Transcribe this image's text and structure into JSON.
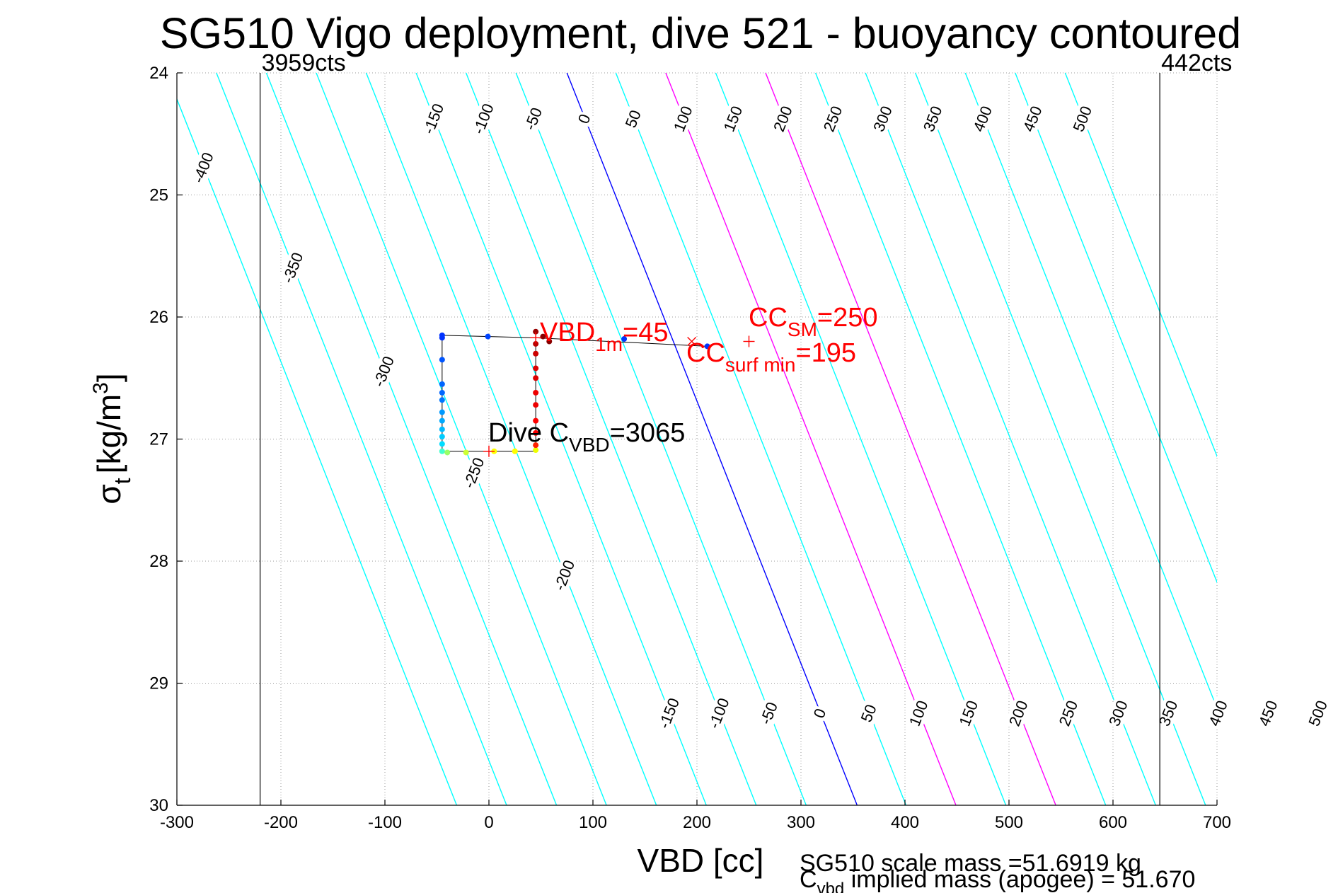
{
  "chart_data": {
    "type": "scatter",
    "title": "SG510 Vigo deployment, dive 521 - buoyancy contoured",
    "xlabel": "VBD [cc]",
    "ylabel_symbol": "σ",
    "ylabel_sub": "t",
    "ylabel_units": "[kg/m",
    "ylabel_units_sup": "3",
    "ylabel_units_close": "]",
    "xlim": [
      -300,
      700
    ],
    "ylim": [
      24,
      30
    ],
    "y_reversed": true,
    "grid": true,
    "x_ticks": [
      -300,
      -200,
      -100,
      0,
      100,
      200,
      300,
      400,
      500,
      600,
      700
    ],
    "x_tick_labels": [
      "-300",
      "-200",
      "-100",
      "0",
      "100",
      "200",
      "300",
      "400",
      "500",
      "600",
      "700"
    ],
    "y_ticks": [
      24,
      25,
      26,
      27,
      28,
      29,
      30
    ],
    "y_tick_labels": [
      "24",
      "25",
      "26",
      "27",
      "28",
      "29",
      "30"
    ],
    "limit_lines": [
      {
        "x": -220,
        "label": "3959cts"
      },
      {
        "x": 645,
        "label": "442cts"
      }
    ],
    "buoyancy_contours": {
      "slope_vbd_per_sigma": 46.5,
      "reference_sigma": 24,
      "levels": [
        -400,
        -350,
        -300,
        -250,
        -200,
        -150,
        -100,
        -50,
        0,
        50,
        100,
        150,
        200,
        250,
        300,
        350,
        400,
        450,
        500
      ],
      "offsets_at_ref": [
        -310,
        -262,
        -214,
        -166,
        -118,
        -70,
        -22,
        26,
        75,
        122,
        170,
        218,
        266,
        314,
        362,
        410,
        458,
        506,
        554
      ],
      "highlight": {
        "0": "#0000ff",
        "100": "#ff00ff",
        "200": "#ff00ff"
      },
      "color": "#00ffff",
      "upper_label_levels": [
        "-150",
        "-100",
        "-50",
        "0",
        "50",
        "100",
        "150",
        "200",
        "250",
        "300",
        "350",
        "400",
        "450",
        "500"
      ],
      "upper_label_sigma": 24.38,
      "lower_label_levels": [
        "-150",
        "-100",
        "-50",
        "0",
        "50",
        "100",
        "150",
        "200",
        "250",
        "300",
        "350",
        "400",
        "450",
        "500"
      ],
      "lower_label_sigma": 29.25,
      "left_labels": [
        {
          "level": "-400",
          "sigma": 24.78
        },
        {
          "level": "-350",
          "sigma": 25.6
        },
        {
          "level": "-300",
          "sigma": 26.45
        },
        {
          "level": "-250",
          "sigma": 27.28
        },
        {
          "level": "-200",
          "sigma": 28.12
        }
      ]
    },
    "trajectory": {
      "path": [
        {
          "x": -45,
          "y": 26.15
        },
        {
          "x": 45,
          "y": 26.17
        },
        {
          "x": 210,
          "y": 26.24
        }
      ],
      "box": [
        {
          "x": -45,
          "y": 26.15
        },
        {
          "x": -45,
          "y": 27.1
        },
        {
          "x": 45,
          "y": 27.1
        },
        {
          "x": 45,
          "y": 26.15
        }
      ],
      "dive_points": [
        {
          "x": -45,
          "y": 26.15,
          "color": "#0033ff"
        },
        {
          "x": -45,
          "y": 26.17,
          "color": "#0033ff"
        },
        {
          "x": -1,
          "y": 26.16,
          "color": "#0044ff"
        },
        {
          "x": 130,
          "y": 26.18,
          "color": "#0033ff"
        },
        {
          "x": 210,
          "y": 26.24,
          "color": "#0033ff"
        },
        {
          "x": -45,
          "y": 26.35,
          "color": "#0055ff"
        },
        {
          "x": -45,
          "y": 26.55,
          "color": "#0066ff"
        },
        {
          "x": -45,
          "y": 26.62,
          "color": "#0066ff"
        },
        {
          "x": -45,
          "y": 26.68,
          "color": "#0077ff"
        },
        {
          "x": -45,
          "y": 26.78,
          "color": "#0099ff"
        },
        {
          "x": -45,
          "y": 26.85,
          "color": "#00aaff"
        },
        {
          "x": -45,
          "y": 26.92,
          "color": "#00bbff"
        },
        {
          "x": -45,
          "y": 26.98,
          "color": "#00ccff"
        },
        {
          "x": -45,
          "y": 27.04,
          "color": "#00ddff"
        },
        {
          "x": -45,
          "y": 27.1,
          "color": "#44ffcc"
        },
        {
          "x": -40,
          "y": 27.11,
          "color": "#99ff66"
        },
        {
          "x": -22,
          "y": 27.11,
          "color": "#ccff33"
        },
        {
          "x": 5,
          "y": 27.1,
          "color": "#ffff00"
        },
        {
          "x": 25,
          "y": 27.1,
          "color": "#ffff00"
        },
        {
          "x": 45,
          "y": 27.09,
          "color": "#eeff00"
        }
      ],
      "climb_points": [
        {
          "x": 45,
          "y": 27.05,
          "color": "#ff2200"
        },
        {
          "x": 45,
          "y": 26.95,
          "color": "#ff0000"
        },
        {
          "x": 45,
          "y": 26.85,
          "color": "#ff0000"
        },
        {
          "x": 45,
          "y": 26.72,
          "color": "#ee0000"
        },
        {
          "x": 45,
          "y": 26.62,
          "color": "#ee0000"
        },
        {
          "x": 45,
          "y": 26.5,
          "color": "#dd0000"
        },
        {
          "x": 45,
          "y": 26.42,
          "color": "#dd0000"
        },
        {
          "x": 45,
          "y": 26.3,
          "color": "#cc0000"
        },
        {
          "x": 45,
          "y": 26.22,
          "color": "#bb0000"
        },
        {
          "x": 45,
          "y": 26.12,
          "color": "#990000"
        },
        {
          "x": 52,
          "y": 26.16,
          "color": "#880000"
        },
        {
          "x": 58,
          "y": 26.2,
          "color": "#880000"
        }
      ]
    },
    "markers": [
      {
        "x": 45,
        "y": 26.17,
        "symbol": "+",
        "color": "#ff0000"
      },
      {
        "x": 195,
        "y": 26.2,
        "symbol": "x",
        "color": "#ff0000"
      },
      {
        "x": 250,
        "y": 26.2,
        "symbol": "+",
        "color": "#ff0000"
      },
      {
        "x": 0,
        "y": 27.1,
        "symbol": "+",
        "color": "#ff0000"
      }
    ],
    "annotations": {
      "vbd1m": {
        "main": "VBD",
        "sub": "1m",
        "tail": "=45",
        "color": "#ff0000"
      },
      "ccsm": {
        "main": "CC",
        "sub": "SM",
        "tail": "=250",
        "color": "#ff0000"
      },
      "ccsurf": {
        "main": "CC",
        "sub": "surf min",
        "tail": "=195",
        "color": "#ff0000"
      },
      "divec": {
        "main": "Dive C",
        "sub": "VBD",
        "tail": "=3065",
        "color": "#000000"
      }
    },
    "footer": {
      "line1": "SG510 scale mass =51.6919 kg",
      "line2_main": "C",
      "line2_sub": "vbd",
      "line2_tail": " implied mass (apogee) = 51.670"
    }
  }
}
